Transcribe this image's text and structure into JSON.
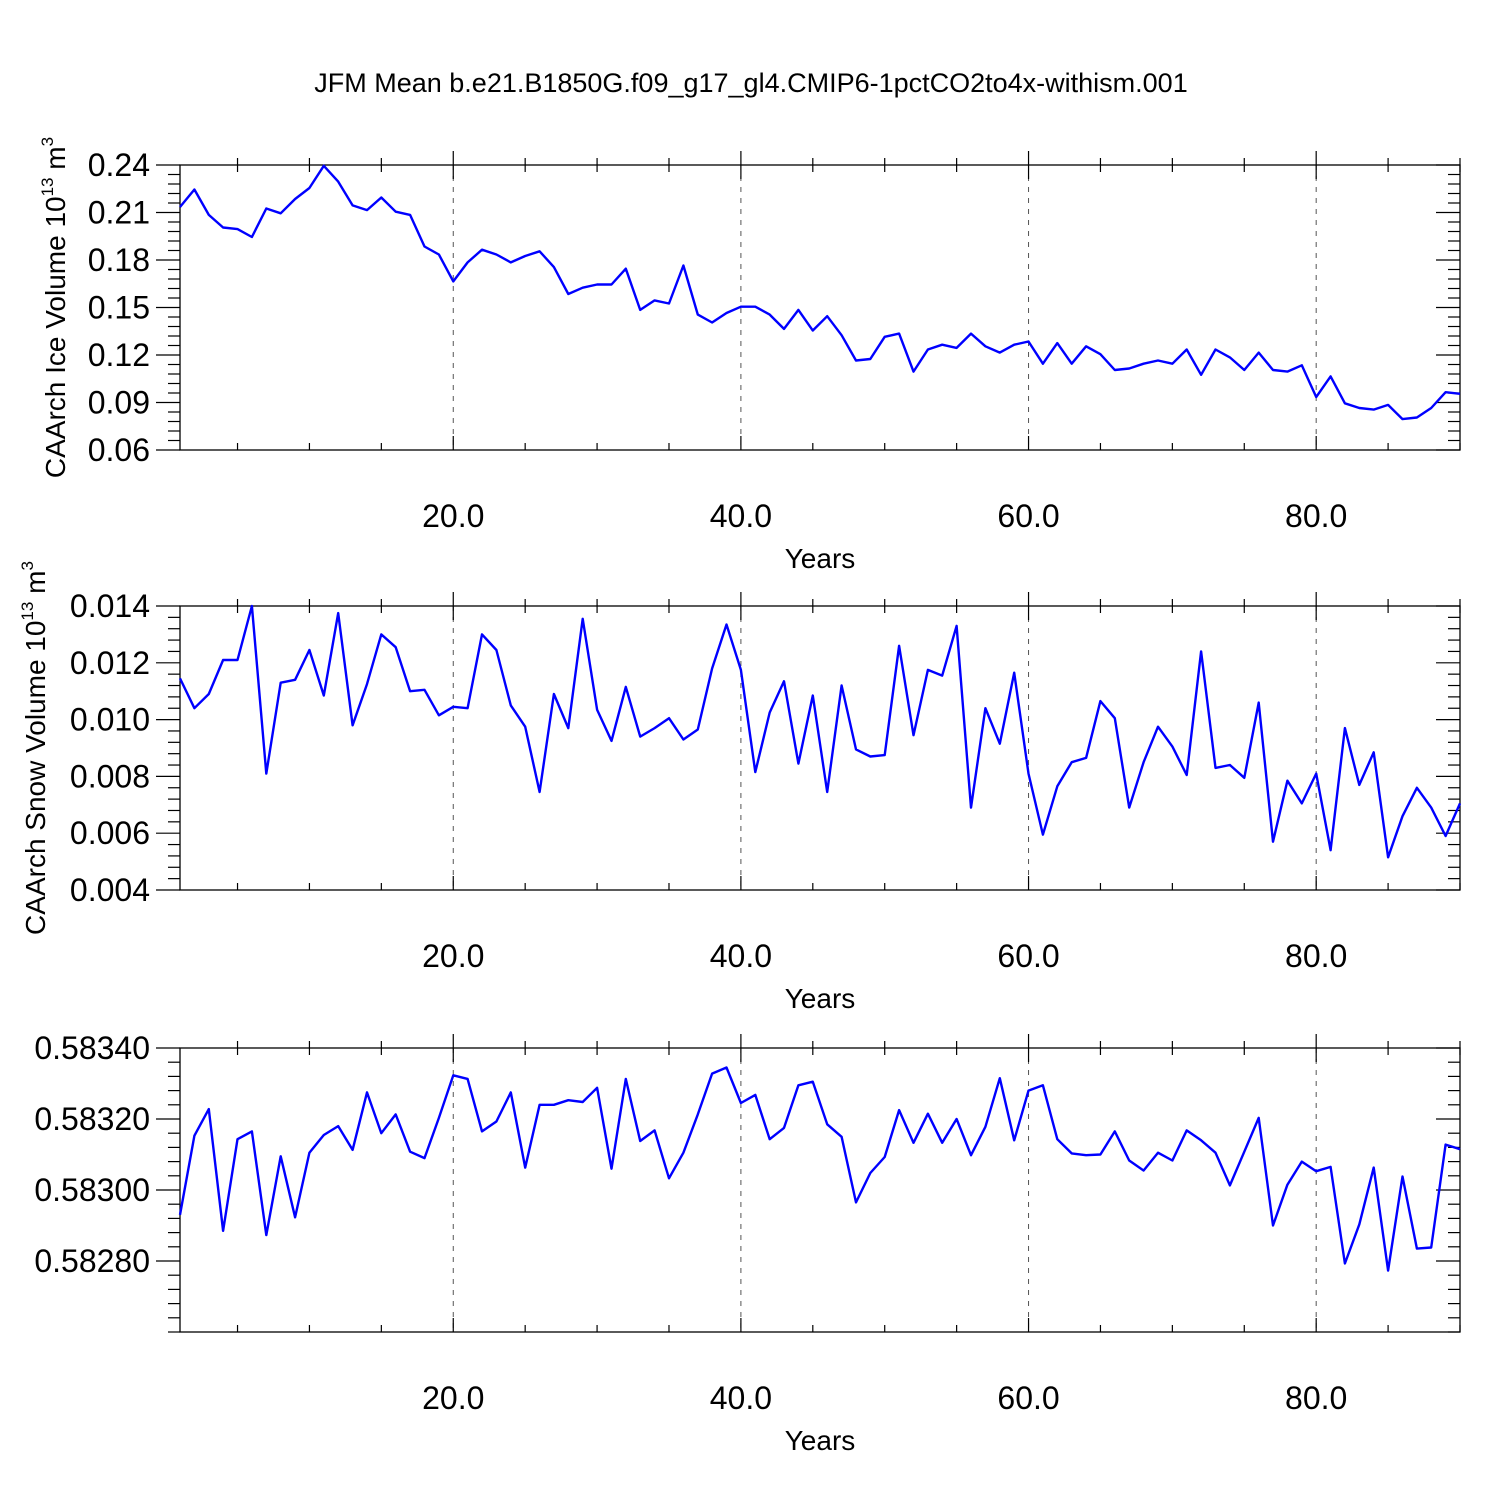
{
  "figure_title": "JFM Mean b.e21.B1850G.f09_g17_gl4.CMIP6-1pctCO2to4x-withism.001",
  "chart_data": [
    {
      "type": "line",
      "title": "",
      "xlabel": "Years",
      "ylabel": "CAArch Ice Volume 10",
      "ylabel_exp": "13",
      "ylabel_unit": " m",
      "ylabel_unit_exp": "3",
      "xlim": [
        1,
        90
      ],
      "ylim": [
        0.06,
        0.24
      ],
      "xticks": [
        20,
        40,
        60,
        80
      ],
      "xtick_labels": [
        "20.0",
        "40.0",
        "60.0",
        "80.0"
      ],
      "yticks": [
        0.06,
        0.09,
        0.12,
        0.15,
        0.18,
        0.21,
        0.24
      ],
      "ytick_labels": [
        "0.06",
        "0.09",
        "0.12",
        "0.15",
        "0.18",
        "0.21",
        "0.24"
      ],
      "grid": "vertical dashed at major x ticks",
      "color": "#0000ff",
      "x_start": 1,
      "y": [
        0.2135,
        0.2245,
        0.2085,
        0.2005,
        0.1995,
        0.1945,
        0.2125,
        0.2095,
        0.2185,
        0.2255,
        0.2395,
        0.2295,
        0.2145,
        0.2115,
        0.2195,
        0.2105,
        0.2085,
        0.1885,
        0.1835,
        0.1665,
        0.1785,
        0.1865,
        0.1835,
        0.1785,
        0.1825,
        0.1855,
        0.1755,
        0.1585,
        0.1625,
        0.1645,
        0.1645,
        0.1745,
        0.1485,
        0.1545,
        0.1525,
        0.1765,
        0.1455,
        0.1405,
        0.1465,
        0.1505,
        0.1505,
        0.1455,
        0.1365,
        0.1485,
        0.1355,
        0.1445,
        0.1325,
        0.1165,
        0.1175,
        0.1315,
        0.1335,
        0.1095,
        0.1235,
        0.1265,
        0.1245,
        0.1335,
        0.1255,
        0.1215,
        0.1265,
        0.1285,
        0.1145,
        0.1275,
        0.1145,
        0.1255,
        0.1205,
        0.1105,
        0.1115,
        0.1145,
        0.1165,
        0.1145,
        0.1235,
        0.1075,
        0.1235,
        0.1185,
        0.1105,
        0.1215,
        0.1105,
        0.1095,
        0.1135,
        0.0935,
        0.1065,
        0.0895,
        0.0865,
        0.0855,
        0.0885,
        0.0795,
        0.0805,
        0.0865,
        0.0965,
        0.0955
      ]
    },
    {
      "type": "line",
      "title": "",
      "xlabel": "Years",
      "ylabel": "CAArch Snow Volume 10",
      "ylabel_exp": "13",
      "ylabel_unit": " m",
      "ylabel_unit_exp": "3",
      "xlim": [
        1,
        90
      ],
      "ylim": [
        0.004,
        0.014
      ],
      "xticks": [
        20,
        40,
        60,
        80
      ],
      "xtick_labels": [
        "20.0",
        "40.0",
        "60.0",
        "80.0"
      ],
      "yticks": [
        0.004,
        0.006,
        0.008,
        0.01,
        0.012,
        0.014
      ],
      "ytick_labels": [
        "0.004",
        "0.006",
        "0.008",
        "0.010",
        "0.012",
        "0.014"
      ],
      "grid": "vertical dashed at major x ticks",
      "color": "#0000ff",
      "x_start": 1,
      "y": [
        0.01145,
        0.0104,
        0.0109,
        0.0121,
        0.0121,
        0.014,
        0.0081,
        0.0113,
        0.0114,
        0.01245,
        0.01085,
        0.01375,
        0.0098,
        0.01125,
        0.013,
        0.01255,
        0.011,
        0.01105,
        0.01015,
        0.01045,
        0.0104,
        0.013,
        0.01245,
        0.0105,
        0.00975,
        0.00745,
        0.0109,
        0.0097,
        0.01355,
        0.01035,
        0.00925,
        0.01115,
        0.0094,
        0.0097,
        0.01005,
        0.0093,
        0.00965,
        0.0118,
        0.01335,
        0.01175,
        0.00815,
        0.01025,
        0.01135,
        0.00845,
        0.01085,
        0.00745,
        0.0112,
        0.00895,
        0.0087,
        0.00875,
        0.0126,
        0.00945,
        0.01175,
        0.01155,
        0.0133,
        0.0069,
        0.0104,
        0.00915,
        0.01165,
        0.0081,
        0.00595,
        0.00765,
        0.0085,
        0.00865,
        0.01065,
        0.01005,
        0.0069,
        0.0085,
        0.00975,
        0.00905,
        0.00805,
        0.0124,
        0.0083,
        0.0084,
        0.00795,
        0.0106,
        0.0057,
        0.00785,
        0.00705,
        0.0081,
        0.0054,
        0.0097,
        0.0077,
        0.00885,
        0.00515,
        0.0066,
        0.0076,
        0.0069,
        0.0059,
        0.00705
      ]
    },
    {
      "type": "line",
      "title": "",
      "xlabel": "Years",
      "ylabel": "",
      "xlim": [
        1,
        90
      ],
      "ylim": [
        0.5826,
        0.5834
      ],
      "xticks": [
        20,
        40,
        60,
        80
      ],
      "xtick_labels": [
        "20.0",
        "40.0",
        "60.0",
        "80.0"
      ],
      "yticks": [
        0.5828,
        0.583,
        0.5832,
        0.5834
      ],
      "ytick_labels": [
        "0.58280",
        "0.58300",
        "0.58320",
        "0.58340"
      ],
      "grid": "vertical dashed at major x ticks",
      "color": "#0000ff",
      "x_start": 1,
      "y": [
        0.58293,
        0.583153,
        0.583228,
        0.582885,
        0.583143,
        0.583165,
        0.582873,
        0.583095,
        0.582923,
        0.583105,
        0.583155,
        0.58318,
        0.583113,
        0.583275,
        0.58316,
        0.583213,
        0.583108,
        0.58309,
        0.583203,
        0.583323,
        0.583313,
        0.583165,
        0.583193,
        0.583275,
        0.583063,
        0.58324,
        0.58324,
        0.583253,
        0.583248,
        0.583288,
        0.58306,
        0.583313,
        0.583138,
        0.583168,
        0.583033,
        0.583105,
        0.583213,
        0.583328,
        0.583345,
        0.583245,
        0.583268,
        0.583143,
        0.583175,
        0.583295,
        0.583305,
        0.583185,
        0.58315,
        0.582965,
        0.583048,
        0.583093,
        0.583225,
        0.583133,
        0.583215,
        0.583133,
        0.5832,
        0.583098,
        0.583178,
        0.583315,
        0.58314,
        0.58328,
        0.583295,
        0.583143,
        0.583103,
        0.583098,
        0.5831,
        0.583165,
        0.583083,
        0.583055,
        0.583105,
        0.583083,
        0.583168,
        0.58314,
        0.583105,
        0.583013,
        0.583108,
        0.583203,
        0.5829,
        0.583015,
        0.58308,
        0.583053,
        0.583065,
        0.582793,
        0.582903,
        0.583063,
        0.582773,
        0.583038,
        0.582835,
        0.582838,
        0.583128,
        0.583115
      ]
    }
  ]
}
